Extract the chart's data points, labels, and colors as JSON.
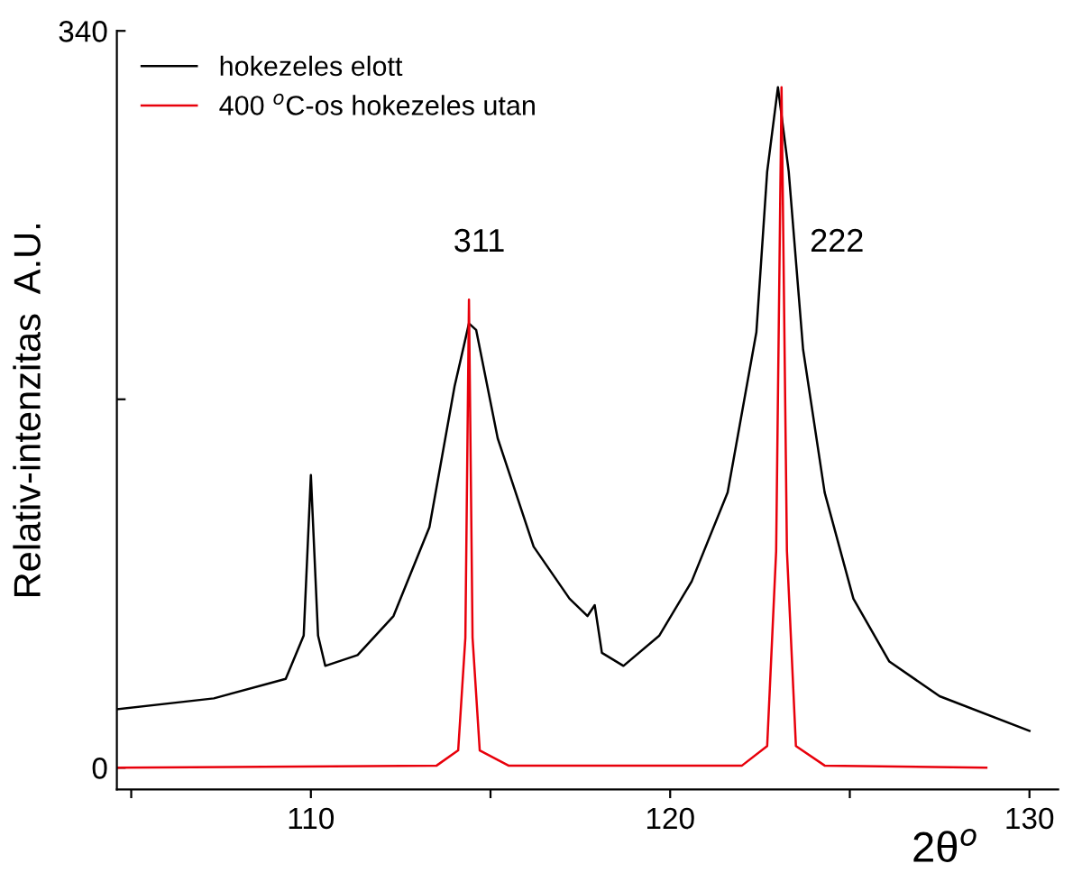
{
  "chart_data": {
    "type": "line",
    "xlabel": "2θ$^{o}$",
    "ylabel": "Relativ-intenzitas  A.U.",
    "xlim": [
      104.6,
      130.8
    ],
    "ylim": [
      -10,
      340
    ],
    "xticks": [
      {
        "value": 105,
        "label": null
      },
      110,
      {
        "value": 115,
        "label": null
      },
      120,
      {
        "value": 125,
        "label": null
      },
      130
    ],
    "yticks": [
      0,
      {
        "value": 170,
        "label": null
      },
      340
    ],
    "grid": false,
    "legend": "top left",
    "marker": "none",
    "line_style": "solid",
    "series": [
      {
        "name": "hokezeles elott",
        "color": "#000000",
        "x": [
          104.6,
          107.3,
          109.3,
          109.8,
          110.0,
          110.2,
          110.4,
          111.3,
          112.3,
          113.3,
          114.0,
          114.4,
          114.6,
          115.2,
          116.2,
          117.2,
          117.7,
          117.9,
          118.1,
          118.7,
          119.7,
          120.6,
          121.6,
          122.4,
          122.7,
          123.0,
          123.3,
          123.7,
          124.3,
          125.1,
          126.1,
          127.5,
          130.0
        ],
        "values": [
          27,
          32,
          41,
          61,
          135,
          61,
          47,
          52,
          70,
          111,
          176,
          205,
          202,
          152,
          102,
          78,
          70,
          75,
          53,
          47,
          61,
          86,
          127,
          201,
          275,
          314,
          275,
          193,
          127,
          78,
          49,
          33,
          17
        ]
      },
      {
        "name": "400 $^{o}$C-os hokezeles utan",
        "color": "#e8000b",
        "x": [
          104.6,
          113.5,
          114.1,
          114.3,
          114.4,
          114.5,
          114.7,
          115.5,
          122.0,
          122.7,
          122.95,
          123.1,
          123.25,
          123.5,
          124.3,
          128.8
        ],
        "values": [
          0,
          1,
          8,
          60,
          216,
          60,
          8,
          1,
          1,
          10,
          100,
          314,
          100,
          10,
          1,
          0
        ]
      }
    ],
    "annotations": [
      "311",
      "222"
    ]
  }
}
